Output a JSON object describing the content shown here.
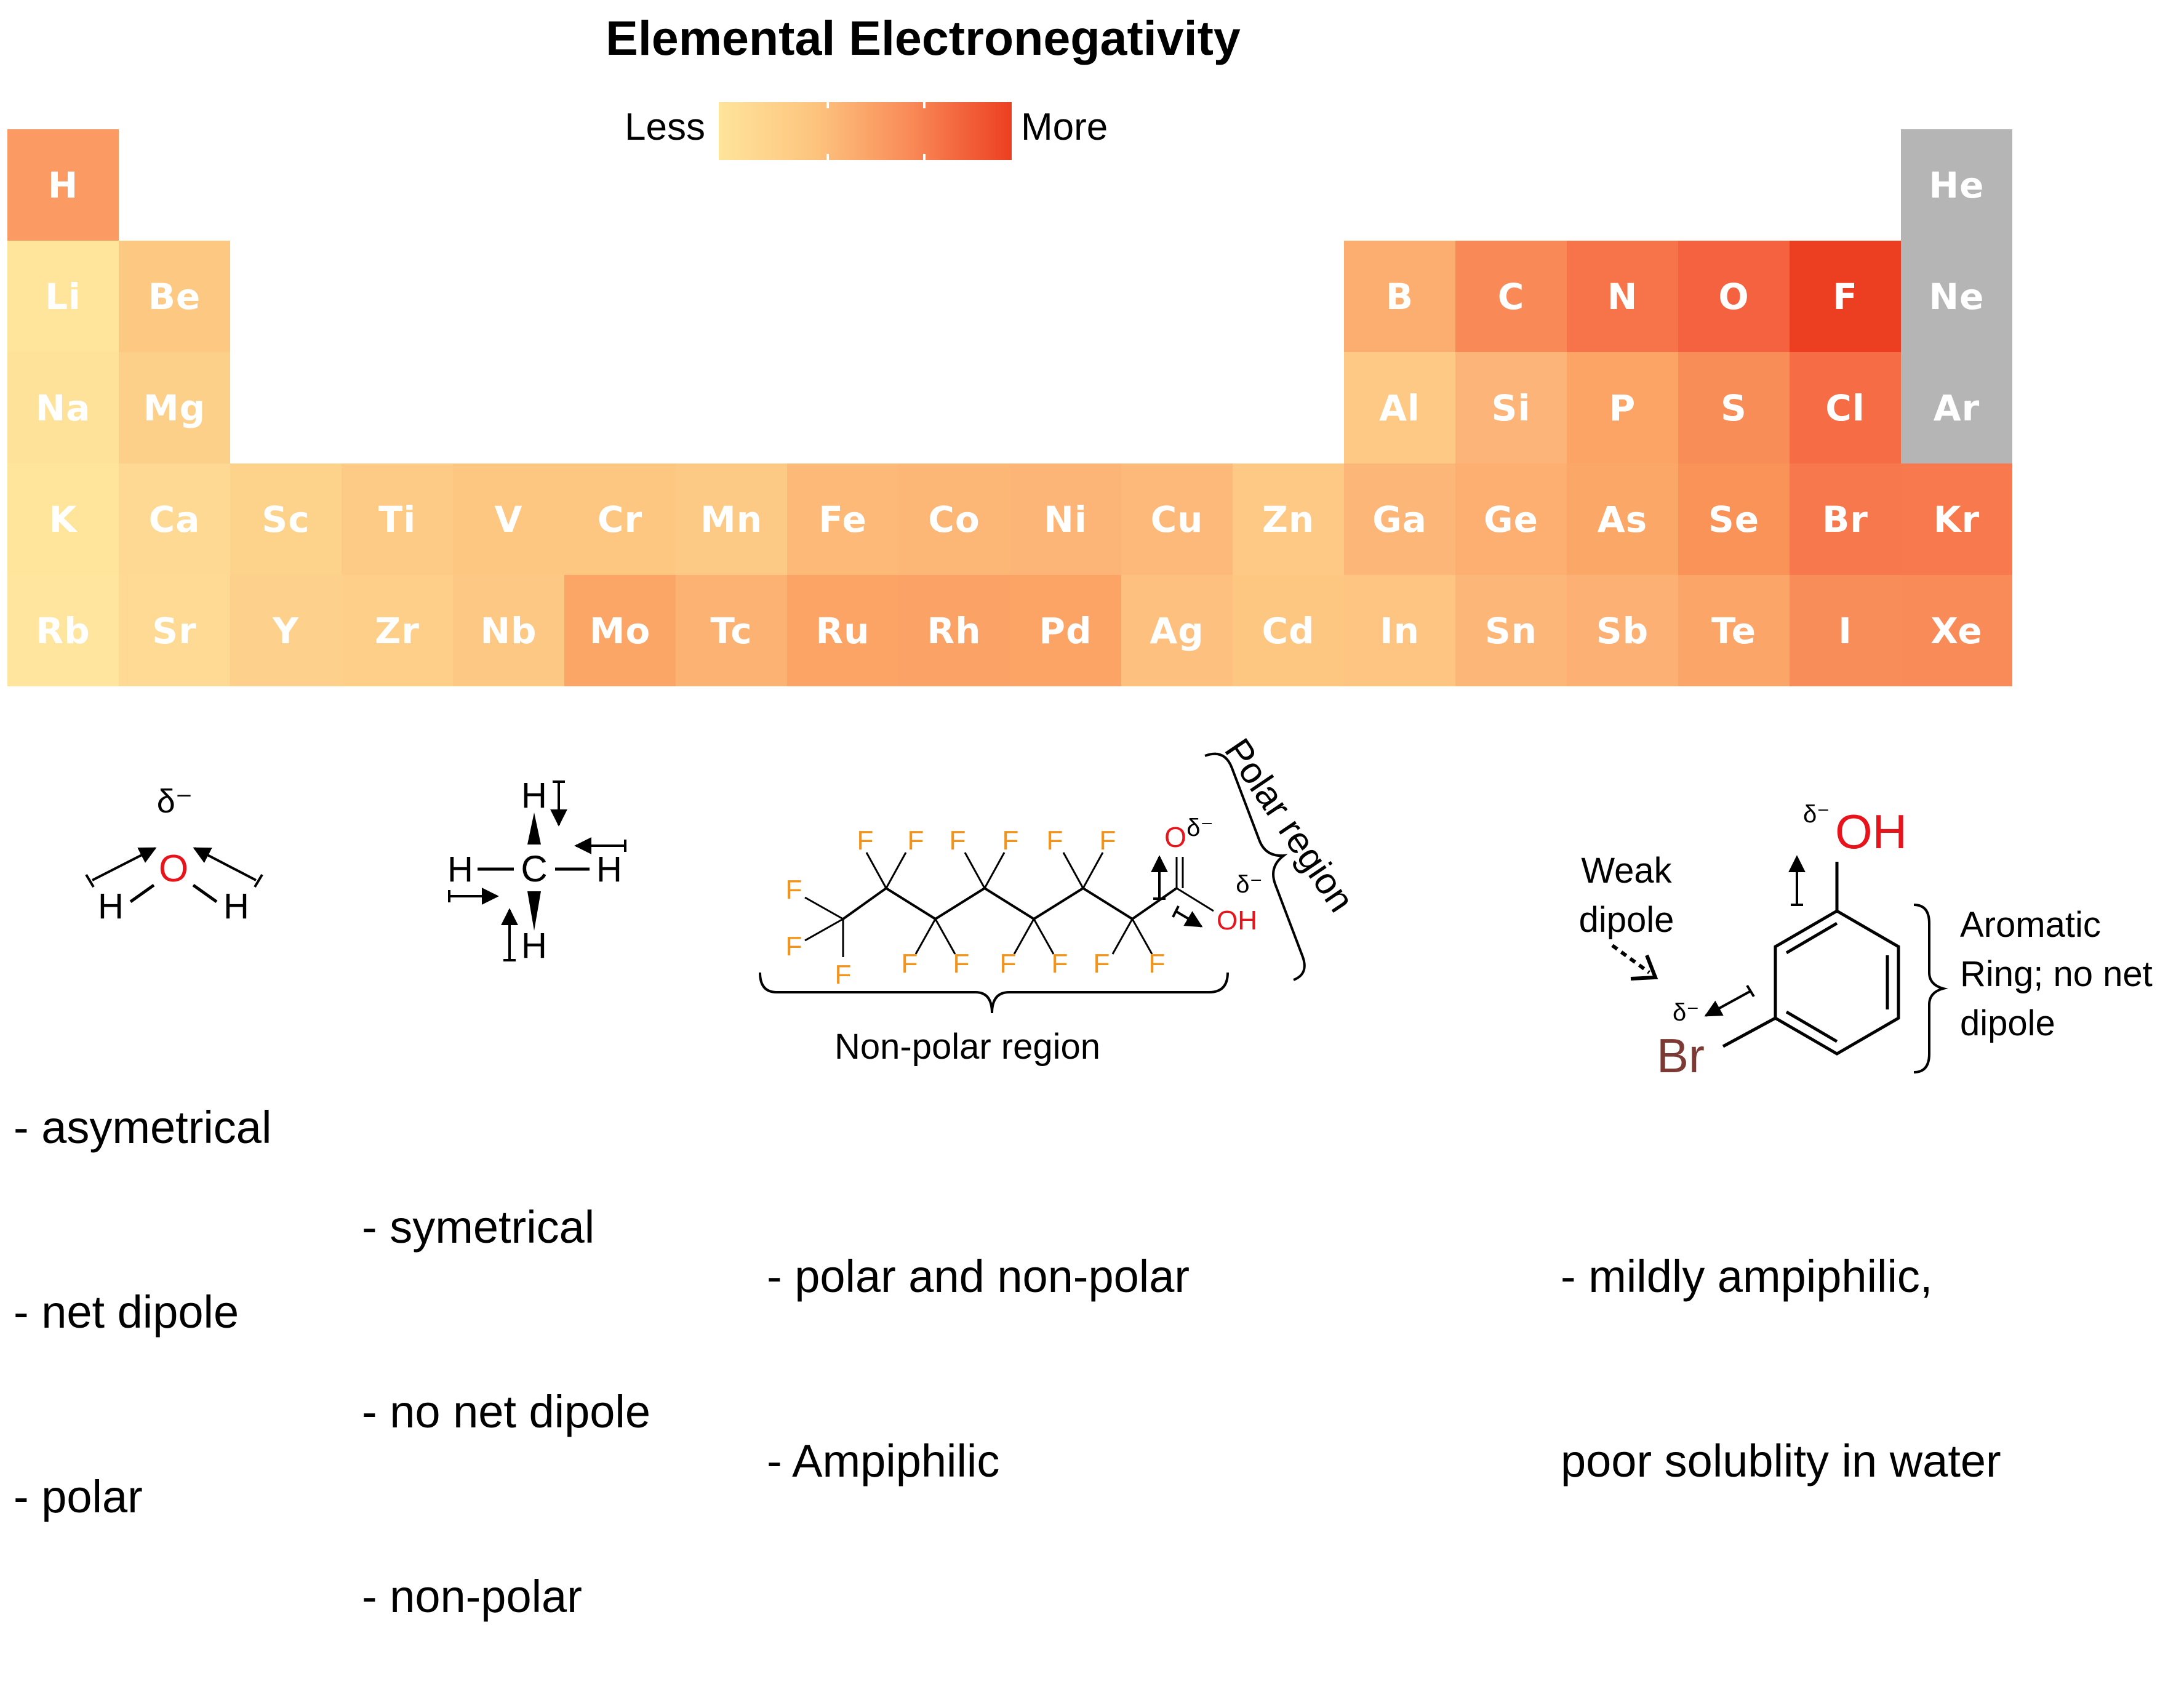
{
  "title": "Elemental Electronegativity",
  "legend": {
    "less": "Less",
    "more": "More",
    "colors": [
      "#ffe49b",
      "#fdc47e",
      "#f98956",
      "#ec3f21"
    ]
  },
  "elements": [
    {
      "symbol": "H",
      "row": 1,
      "col": 1,
      "color": "#fb9a62"
    },
    {
      "symbol": "He",
      "row": 1,
      "col": 18,
      "color": "#b5b5b5"
    },
    {
      "symbol": "Li",
      "row": 2,
      "col": 1,
      "color": "#ffe49b"
    },
    {
      "symbol": "Be",
      "row": 2,
      "col": 2,
      "color": "#fdc881"
    },
    {
      "symbol": "B",
      "row": 2,
      "col": 13,
      "color": "#fcae70"
    },
    {
      "symbol": "C",
      "row": 2,
      "col": 14,
      "color": "#f98a57"
    },
    {
      "symbol": "N",
      "row": 2,
      "col": 15,
      "color": "#f7744a"
    },
    {
      "symbol": "O",
      "row": 2,
      "col": 16,
      "color": "#f46240"
    },
    {
      "symbol": "F",
      "row": 2,
      "col": 17,
      "color": "#ec3f21"
    },
    {
      "symbol": "Ne",
      "row": 2,
      "col": 18,
      "color": "#b5b5b5"
    },
    {
      "symbol": "Na",
      "row": 3,
      "col": 1,
      "color": "#ffe29a"
    },
    {
      "symbol": "Mg",
      "row": 3,
      "col": 2,
      "color": "#fdd08a"
    },
    {
      "symbol": "Al",
      "row": 3,
      "col": 13,
      "color": "#fdc984"
    },
    {
      "symbol": "Si",
      "row": 3,
      "col": 14,
      "color": "#fcb478"
    },
    {
      "symbol": "P",
      "row": 3,
      "col": 15,
      "color": "#fba466"
    },
    {
      "symbol": "S",
      "row": 3,
      "col": 16,
      "color": "#f98d58"
    },
    {
      "symbol": "Cl",
      "row": 3,
      "col": 17,
      "color": "#f56c45"
    },
    {
      "symbol": "Ar",
      "row": 3,
      "col": 18,
      "color": "#b5b5b5"
    },
    {
      "symbol": "K",
      "row": 4,
      "col": 1,
      "color": "#ffe49b"
    },
    {
      "symbol": "Ca",
      "row": 4,
      "col": 2,
      "color": "#fed993"
    },
    {
      "symbol": "Sc",
      "row": 4,
      "col": 3,
      "color": "#fdd28b"
    },
    {
      "symbol": "Ti",
      "row": 4,
      "col": 4,
      "color": "#fdcb86"
    },
    {
      "symbol": "V",
      "row": 4,
      "col": 5,
      "color": "#fdc781"
    },
    {
      "symbol": "Cr",
      "row": 4,
      "col": 6,
      "color": "#fdc782"
    },
    {
      "symbol": "Mn",
      "row": 4,
      "col": 7,
      "color": "#fdca85"
    },
    {
      "symbol": "Fe",
      "row": 4,
      "col": 8,
      "color": "#fcb978"
    },
    {
      "symbol": "Co",
      "row": 4,
      "col": 9,
      "color": "#fcb676"
    },
    {
      "symbol": "Ni",
      "row": 4,
      "col": 10,
      "color": "#fcb576"
    },
    {
      "symbol": "Cu",
      "row": 4,
      "col": 11,
      "color": "#fcb979"
    },
    {
      "symbol": "Zn",
      "row": 4,
      "col": 12,
      "color": "#fdc984"
    },
    {
      "symbol": "Ga",
      "row": 4,
      "col": 13,
      "color": "#fcb677"
    },
    {
      "symbol": "Ge",
      "row": 4,
      "col": 14,
      "color": "#fcaf70"
    },
    {
      "symbol": "As",
      "row": 4,
      "col": 15,
      "color": "#fba768"
    },
    {
      "symbol": "Se",
      "row": 4,
      "col": 16,
      "color": "#f99358"
    },
    {
      "symbol": "Br",
      "row": 4,
      "col": 17,
      "color": "#f7784c"
    },
    {
      "symbol": "Kr",
      "row": 4,
      "col": 18,
      "color": "#f7794d"
    },
    {
      "symbol": "Rb",
      "row": 5,
      "col": 1,
      "color": "#ffe59d"
    },
    {
      "symbol": "Sr",
      "row": 5,
      "col": 2,
      "color": "#feda94"
    },
    {
      "symbol": "Y",
      "row": 5,
      "col": 3,
      "color": "#fdd18b"
    },
    {
      "symbol": "Zr",
      "row": 5,
      "col": 4,
      "color": "#fdcf89"
    },
    {
      "symbol": "Nb",
      "row": 5,
      "col": 5,
      "color": "#fdc883"
    },
    {
      "symbol": "Mo",
      "row": 5,
      "col": 6,
      "color": "#fba566"
    },
    {
      "symbol": "Tc",
      "row": 5,
      "col": 7,
      "color": "#fcb272"
    },
    {
      "symbol": "Ru",
      "row": 5,
      "col": 8,
      "color": "#fba466"
    },
    {
      "symbol": "Rh",
      "row": 5,
      "col": 9,
      "color": "#fba266"
    },
    {
      "symbol": "Pd",
      "row": 5,
      "col": 10,
      "color": "#fba466"
    },
    {
      "symbol": "Ag",
      "row": 5,
      "col": 11,
      "color": "#fdc07e"
    },
    {
      "symbol": "Cd",
      "row": 5,
      "col": 12,
      "color": "#fdc782"
    },
    {
      "symbol": "In",
      "row": 5,
      "col": 13,
      "color": "#fdc581"
    },
    {
      "symbol": "Sn",
      "row": 5,
      "col": 14,
      "color": "#fcb677"
    },
    {
      "symbol": "Sb",
      "row": 5,
      "col": 15,
      "color": "#fcb074"
    },
    {
      "symbol": "Te",
      "row": 5,
      "col": 16,
      "color": "#fba569"
    },
    {
      "symbol": "I",
      "row": 5,
      "col": 17,
      "color": "#f98d59"
    },
    {
      "symbol": "Xe",
      "row": 5,
      "col": 18,
      "color": "#f98b58"
    }
  ],
  "molecules": {
    "water": {
      "delta": "δ⁻",
      "center": "O",
      "h_left": "H",
      "h_right": "H",
      "notes": [
        "- asymetrical",
        "- net dipole",
        "- polar"
      ]
    },
    "methane": {
      "center": "C",
      "h_top": "H",
      "h_left": "H",
      "h_right": "H",
      "h_bottom": "H",
      "notes": [
        "- symetrical",
        "- no net dipole",
        "- non-polar"
      ]
    },
    "pfoa": {
      "fluorine": "F",
      "oxygen": "O",
      "hydroxyl": "OH",
      "delta": "δ⁻",
      "polar_label": "Polar region",
      "nonpolar_label": "Non-polar region",
      "notes": [
        "- polar and non-polar",
        "- Ampiphilic"
      ]
    },
    "bromophenol": {
      "hydroxyl": "OH",
      "bromine": "Br",
      "delta": "δ⁻",
      "weak_dipole": [
        "Weak",
        "dipole"
      ],
      "ring_label": [
        "Aromatic",
        "Ring; no net",
        "dipole"
      ],
      "notes": [
        "- mildly ampiphilic,",
        "poor solublity in water"
      ]
    }
  }
}
